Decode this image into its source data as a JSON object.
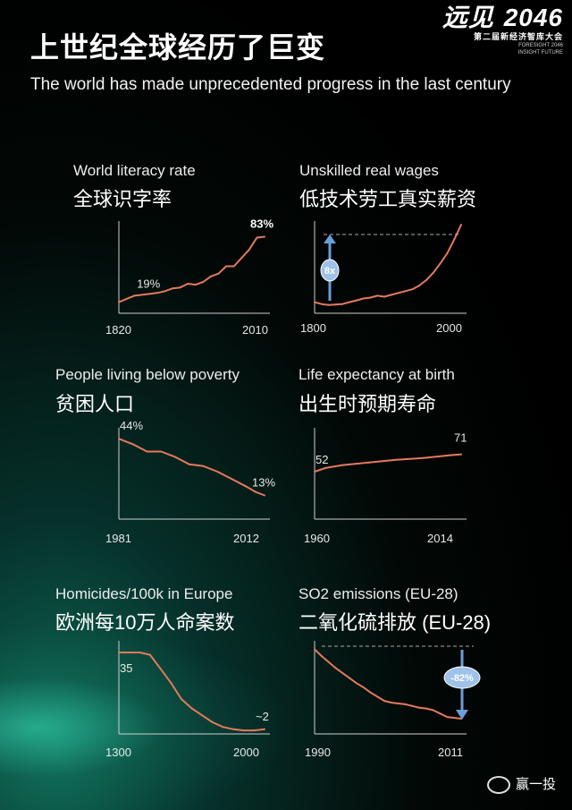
{
  "header": {
    "title_cn": "上世纪全球经历了巨变",
    "title_en": "The world has made unprecedented progress in the last century"
  },
  "logo": {
    "main_a": "远见",
    "main_b": "2046",
    "subtitle": "第二届新经济智库大会",
    "en_line1": "FORESIGHT 2046",
    "en_line2": "INSIGHT FUTURE"
  },
  "colors": {
    "line": "#e37a5e",
    "axis": "#cfcfcf",
    "badge_fill": "#9fc2e8",
    "badge_arrow": "#6a9ed8"
  },
  "chart_data": [
    {
      "type": "line",
      "title": "World literacy rate",
      "title_cn": "全球识字率",
      "x": [
        1820,
        1840,
        1860,
        1870,
        1880,
        1890,
        1900,
        1910,
        1920,
        1930,
        1940,
        1950,
        1960,
        1970,
        1980,
        1990,
        2000,
        2010
      ],
      "values": [
        12,
        19,
        21,
        22,
        24,
        27,
        28,
        32,
        31,
        34,
        40,
        43,
        51,
        51,
        60,
        69,
        82,
        83
      ],
      "xmin": 1820,
      "xmax": 2010,
      "ylim": [
        0,
        100
      ],
      "tick_labels": [
        "1820",
        "2010"
      ],
      "annotations": [
        {
          "text": "19%",
          "x": 1840,
          "y": 19
        },
        {
          "text": "83%",
          "x": 2010,
          "y": 83
        }
      ]
    },
    {
      "type": "line",
      "title": "Unskilled real wages",
      "title_cn": "低技术劳工真实薪资",
      "x": [
        1800,
        1810,
        1820,
        1830,
        1840,
        1850,
        1860,
        1870,
        1880,
        1890,
        1900,
        1910,
        1920,
        1930,
        1940,
        1950,
        1960,
        1970,
        1980,
        1990,
        2000,
        2010
      ],
      "values": [
        1.2,
        1.0,
        0.9,
        0.95,
        1.0,
        1.2,
        1.4,
        1.6,
        1.7,
        1.9,
        1.8,
        2.0,
        2.2,
        2.4,
        2.6,
        3.0,
        3.6,
        4.4,
        5.4,
        6.5,
        8.0,
        9.6
      ],
      "xmin": 1800,
      "xmax": 2010,
      "ylim": [
        0,
        10
      ],
      "tick_labels": [
        "1800",
        "2000"
      ],
      "badge": "8x"
    },
    {
      "type": "line",
      "title": "People living below poverty",
      "title_cn": "贫困人口",
      "x": [
        1981,
        1984,
        1987,
        1990,
        1993,
        1996,
        1999,
        2002,
        2005,
        2008,
        2010,
        2012
      ],
      "values": [
        44,
        41,
        37,
        37,
        34,
        30,
        29,
        26,
        22,
        18,
        15,
        13
      ],
      "xmin": 1981,
      "xmax": 2012,
      "ylim": [
        0,
        50
      ],
      "tick_labels": [
        "1981",
        "2012"
      ],
      "annotations": [
        {
          "text": "44%",
          "x": 1981,
          "y": 44
        },
        {
          "text": "13%",
          "x": 2012,
          "y": 13
        }
      ]
    },
    {
      "type": "line",
      "title": "Life expectancy at birth",
      "title_cn": "出生时预期寿命",
      "x": [
        1960,
        1962,
        1964,
        1970,
        1980,
        1990,
        2000,
        2010,
        2014
      ],
      "values": [
        52,
        54,
        56,
        59,
        62,
        65,
        67,
        70,
        71
      ],
      "xmin": 1960,
      "xmax": 2014,
      "ylim": [
        0,
        100
      ],
      "tick_labels": [
        "1960",
        "2014"
      ],
      "annotations": [
        {
          "text": "52",
          "x": 1960,
          "y": 52
        },
        {
          "text": "71",
          "x": 2014,
          "y": 71
        }
      ]
    },
    {
      "type": "line",
      "title": "Homicides/100k in Europe",
      "title_cn": "欧洲每10万人命案数",
      "x": [
        1300,
        1400,
        1450,
        1500,
        1550,
        1600,
        1650,
        1700,
        1750,
        1800,
        1850,
        1900,
        1950,
        2000
      ],
      "values": [
        35,
        35,
        34,
        28,
        22,
        15,
        11,
        8,
        5,
        3,
        2,
        1.5,
        1.5,
        2
      ],
      "xmin": 1300,
      "xmax": 2000,
      "ylim": [
        0,
        40
      ],
      "tick_labels": [
        "1300",
        "2000"
      ],
      "annotations": [
        {
          "text": "35",
          "x": 1300,
          "y": 35
        },
        {
          "text": "~2",
          "x": 2000,
          "y": 2
        }
      ]
    },
    {
      "type": "line",
      "title": "SO2 emissions (EU-28)",
      "title_cn": "二氧化硫排放 (EU-28)",
      "x": [
        1990,
        1991,
        1992,
        1993,
        1994,
        1995,
        1996,
        1997,
        1998,
        1999,
        2000,
        2001,
        2002,
        2003,
        2004,
        2005,
        2006,
        2007,
        2008,
        2009,
        2010,
        2011
      ],
      "values": [
        100,
        92,
        85,
        78,
        72,
        66,
        60,
        55,
        49,
        44,
        39,
        37,
        36,
        35,
        33,
        31,
        30,
        28,
        24,
        20,
        19,
        18
      ],
      "xmin": 1990,
      "xmax": 2011,
      "ylim": [
        0,
        110
      ],
      "tick_labels": [
        "1990",
        "2011"
      ],
      "badge": "-82%"
    }
  ],
  "watermark": "赢一投"
}
